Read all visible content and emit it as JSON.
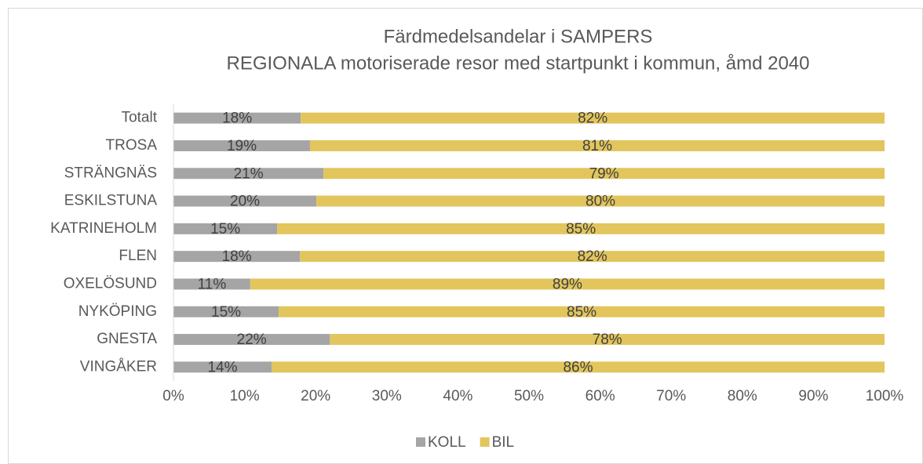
{
  "chart_data": {
    "type": "stacked-bar-horizontal",
    "title": "Färdmedelsandelar i SAMPERS",
    "subtitle": "REGIONALA motoriserade resor med startpunkt i kommun, åmd 2040",
    "categories": [
      "Totalt",
      "TROSA",
      "STRÄNGNÄS",
      "ESKILSTUNA",
      "KATRINEHOLM",
      "FLEN",
      "OXELÖSUND",
      "NYKÖPING",
      "GNESTA",
      "VINGÅKER"
    ],
    "series": [
      {
        "name": "KOLL",
        "color": "#a5a5a5",
        "values": [
          17.9,
          19.2,
          21.1,
          20.1,
          14.6,
          17.8,
          10.8,
          14.8,
          22.0,
          13.8
        ],
        "value_labels": [
          "18%",
          "19%",
          "21%",
          "20%",
          "15%",
          "18%",
          "11%",
          "15%",
          "22%",
          "14%"
        ]
      },
      {
        "name": "BIL",
        "color": "#e2c55c",
        "values": [
          82.1,
          80.8,
          78.9,
          79.9,
          85.4,
          82.2,
          89.2,
          85.2,
          78.0,
          86.2
        ],
        "value_labels": [
          "82%",
          "81%",
          "79%",
          "80%",
          "85%",
          "82%",
          "89%",
          "85%",
          "78%",
          "86%"
        ]
      }
    ],
    "xlim": [
      0,
      100
    ],
    "xticks": [
      {
        "value": 0,
        "label": "0%"
      },
      {
        "value": 10,
        "label": "10%"
      },
      {
        "value": 20,
        "label": "20%"
      },
      {
        "value": 30,
        "label": "30%"
      },
      {
        "value": 40,
        "label": "40%"
      },
      {
        "value": 50,
        "label": "50%"
      },
      {
        "value": 60,
        "label": "60%"
      },
      {
        "value": 70,
        "label": "70%"
      },
      {
        "value": 80,
        "label": "80%"
      },
      {
        "value": 90,
        "label": "90%"
      },
      {
        "value": 100,
        "label": "100%"
      }
    ],
    "legend": "bottom"
  }
}
